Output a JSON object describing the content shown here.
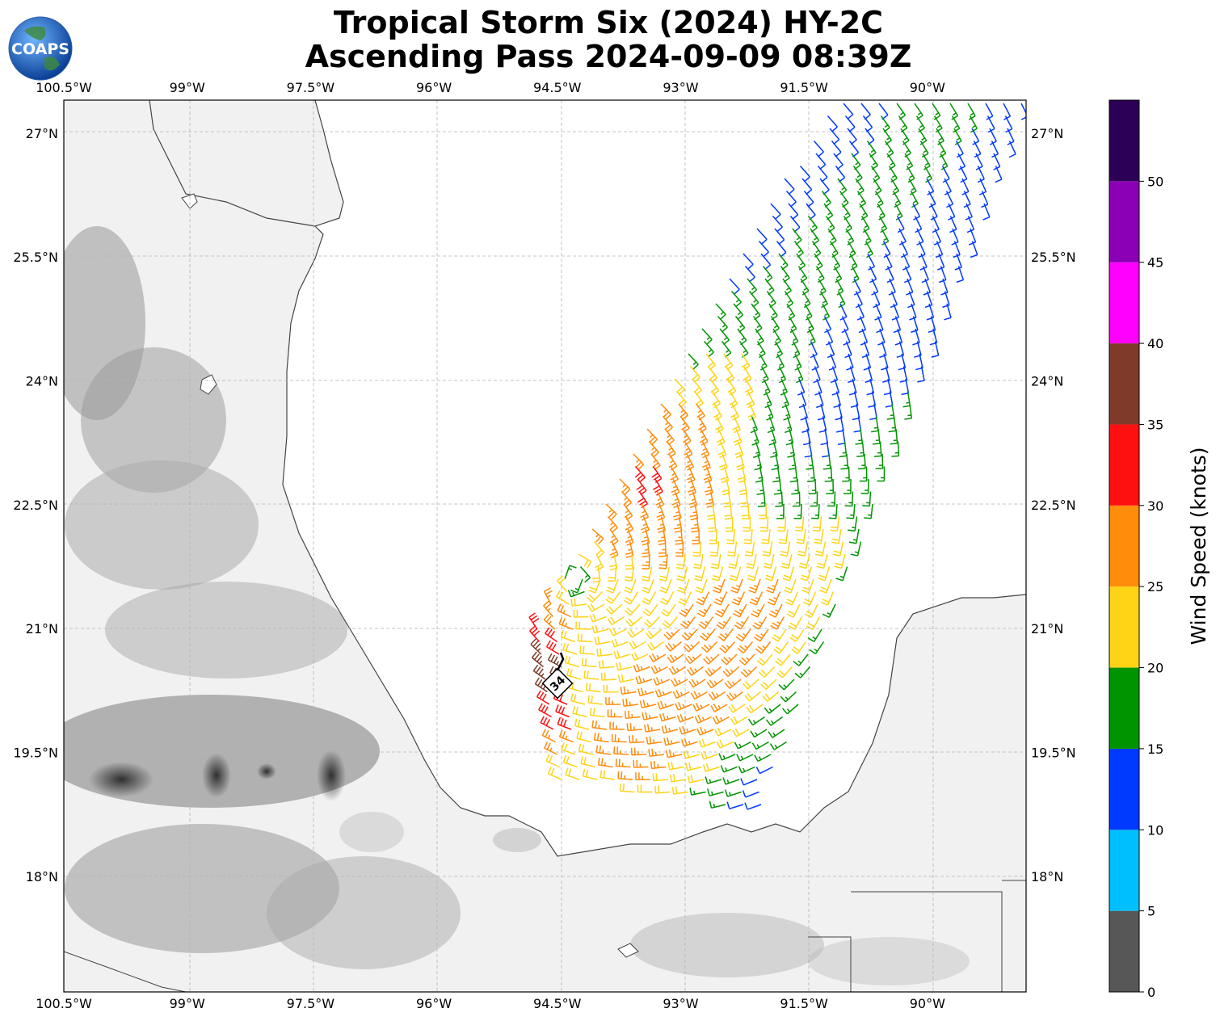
{
  "title": {
    "line1": "Tropical Storm Six (2024) HY-2C",
    "line2": "Ascending Pass 2024-09-09 08:39Z"
  },
  "logo": {
    "text": "COAPS",
    "icon": "globe-icon"
  },
  "map": {
    "lon_range": [
      -100.5,
      -88.8
    ],
    "lat_range": [
      16.6,
      27.4
    ],
    "lon_ticks": [
      "100.5°W",
      "99°W",
      "97.5°W",
      "96°W",
      "94.5°W",
      "93°W",
      "91.5°W",
      "90°W"
    ],
    "lat_ticks": [
      "27°N",
      "25.5°N",
      "24°N",
      "22.5°N",
      "21°N",
      "19.5°N",
      "18°N"
    ],
    "gridlines": true,
    "storm_marker": {
      "label": "34",
      "lon": -94.4,
      "lat": 20.3
    }
  },
  "colorbar": {
    "label": "Wind Speed (knots)",
    "ticks": [
      "0",
      "5",
      "10",
      "15",
      "20",
      "25",
      "30",
      "35",
      "40",
      "45",
      "50"
    ],
    "bins": [
      {
        "min": 0,
        "max": 5,
        "color": "#575757"
      },
      {
        "min": 5,
        "max": 10,
        "color": "#00bfff"
      },
      {
        "min": 10,
        "max": 15,
        "color": "#0039ff"
      },
      {
        "min": 15,
        "max": 20,
        "color": "#009400"
      },
      {
        "min": 20,
        "max": 25,
        "color": "#ffd416"
      },
      {
        "min": 25,
        "max": 30,
        "color": "#ff8c0b"
      },
      {
        "min": 30,
        "max": 35,
        "color": "#ff1010"
      },
      {
        "min": 35,
        "max": 40,
        "color": "#7f3a2a"
      },
      {
        "min": 40,
        "max": 45,
        "color": "#ff00ff"
      },
      {
        "min": 45,
        "max": 50,
        "color": "#8b00b5"
      },
      {
        "min": 50,
        "max": 55,
        "color": "#2c0056"
      }
    ]
  },
  "wind_field": {
    "center_lon": -94.3,
    "center_lat": 21.6,
    "swath_corners_lonlat": [
      [
        -91.2,
        27.4
      ],
      [
        -88.8,
        27.4
      ],
      [
        -92.0,
        18.8
      ],
      [
        -95.8,
        19.3
      ]
    ]
  }
}
